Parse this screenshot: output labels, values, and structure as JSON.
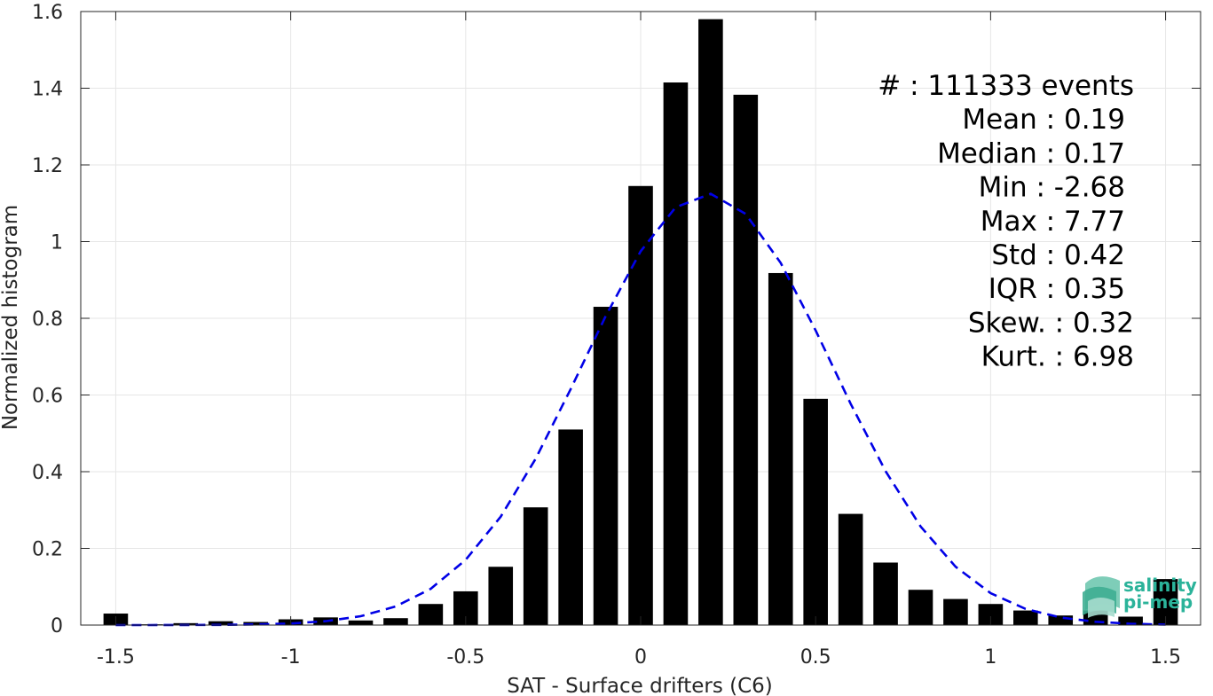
{
  "chart_data": {
    "type": "bar",
    "xlabel": "SAT - Surface drifters (C6)",
    "ylabel": "Normalized histogram",
    "xlim": [
      -1.6,
      1.6
    ],
    "ylim": [
      0,
      1.6
    ],
    "xticks": [
      -1.5,
      -1,
      -0.5,
      0,
      0.5,
      1,
      1.5
    ],
    "xtick_labels": [
      "-1.5",
      "-1",
      "-0.5",
      "0",
      "0.5",
      "1",
      "1.5"
    ],
    "yticks": [
      0,
      0.2,
      0.4,
      0.6,
      0.8,
      1,
      1.2,
      1.4,
      1.6
    ],
    "ytick_labels": [
      "0",
      "0.2",
      "0.4",
      "0.6",
      "0.8",
      "1",
      "1.2",
      "1.4",
      "1.6"
    ],
    "grid": true,
    "bar_color": "#000000",
    "bar_width": 0.07,
    "bars": {
      "x": [
        -1.5,
        -1.4,
        -1.3,
        -1.2,
        -1.1,
        -1.0,
        -0.9,
        -0.8,
        -0.7,
        -0.6,
        -0.5,
        -0.4,
        -0.3,
        -0.2,
        -0.1,
        0.0,
        0.1,
        0.2,
        0.3,
        0.4,
        0.5,
        0.6,
        0.7,
        0.8,
        0.9,
        1.0,
        1.1,
        1.2,
        1.3,
        1.4,
        1.5
      ],
      "values": [
        0.03,
        0.002,
        0.005,
        0.01,
        0.008,
        0.015,
        0.02,
        0.012,
        0.018,
        0.055,
        0.088,
        0.152,
        0.307,
        0.51,
        0.83,
        1.145,
        1.415,
        1.58,
        1.383,
        0.918,
        0.59,
        0.29,
        0.163,
        0.092,
        0.068,
        0.055,
        0.038,
        0.025,
        0.038,
        0.022,
        0.12
      ]
    },
    "fit_curve": {
      "style": "dashed",
      "color": "#0000e6",
      "mean": 0.19,
      "std": 0.355,
      "peak": 1.125,
      "x_range": [
        -1.5,
        1.5
      ]
    },
    "annotations": [
      "#  : 111333 events",
      "Mean : 0.19",
      "Median : 0.17",
      "Min : -2.68",
      "Max : 7.77",
      "Std : 0.42",
      "IQR : 0.35",
      "Skew. : 0.32",
      "Kurt. : 6.98"
    ],
    "logo": {
      "line1": "salinity",
      "line2": "pi-mep",
      "color": "#2bb39a"
    }
  }
}
